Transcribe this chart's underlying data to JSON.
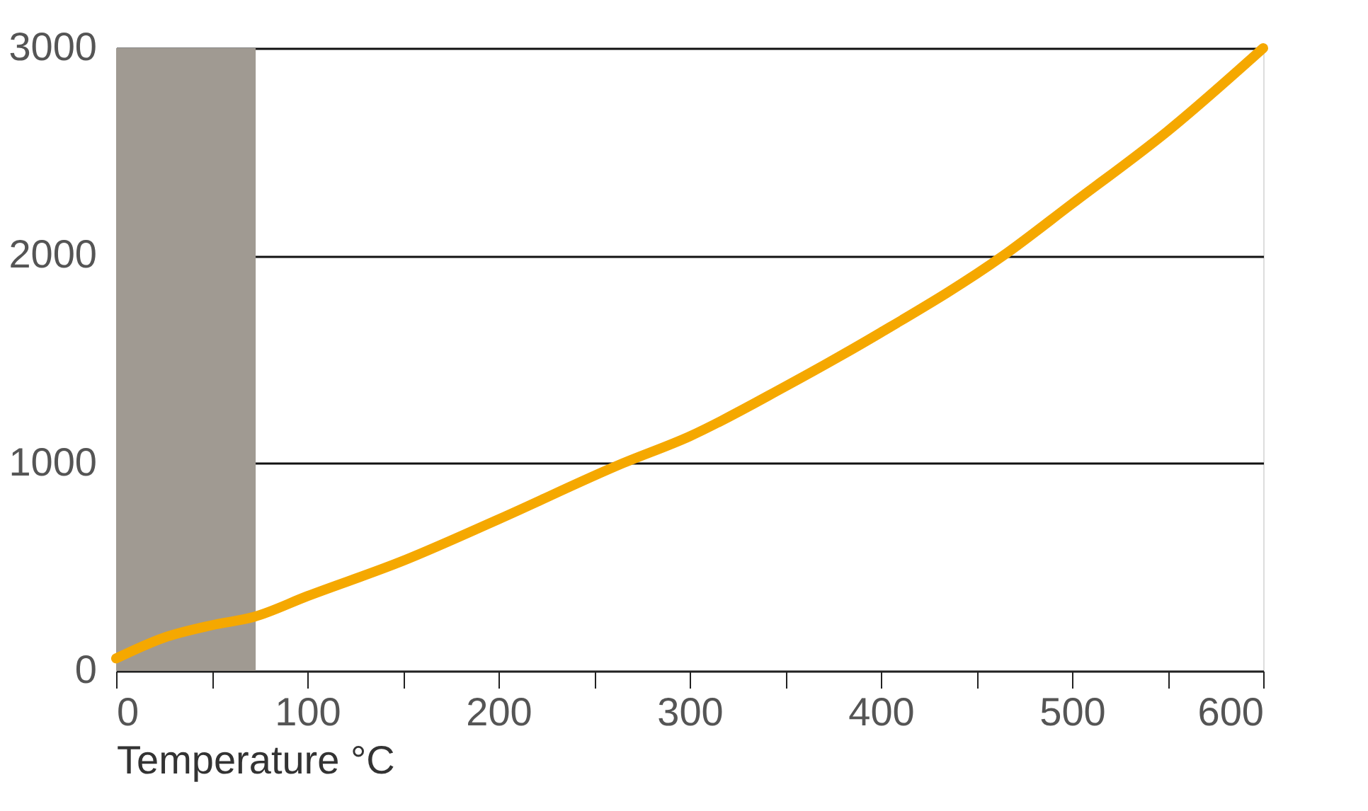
{
  "chart_data": {
    "type": "line",
    "xlabel": "Temperature °C",
    "x": [
      0,
      25,
      50,
      72,
      100,
      150,
      200,
      265,
      300,
      350,
      400,
      464,
      500,
      550,
      600
    ],
    "series": [
      {
        "color": "#f5a800",
        "values": [
          60,
          160,
          220,
          260,
          360,
          530,
          730,
          1000,
          1130,
          1370,
          1630,
          2000,
          2250,
          2600,
          3000
        ]
      }
    ],
    "xlim": [
      0,
      600
    ],
    "ylim": [
      0,
      3000
    ],
    "xticks": [
      0,
      {
        "value": 50,
        "label": null
      },
      100,
      {
        "value": 150,
        "label": null
      },
      200,
      {
        "value": 250,
        "label": null
      },
      300,
      {
        "value": 350,
        "label": null
      },
      400,
      {
        "value": 450,
        "label": null
      },
      500,
      {
        "value": 550,
        "label": null
      },
      600
    ],
    "yticks": [
      0,
      1000,
      2000,
      3000
    ],
    "grid": "y",
    "line_style": "solid",
    "bands": [
      {
        "axis": "x",
        "from": 0,
        "to": 73,
        "color": "#a09a92"
      }
    ]
  }
}
